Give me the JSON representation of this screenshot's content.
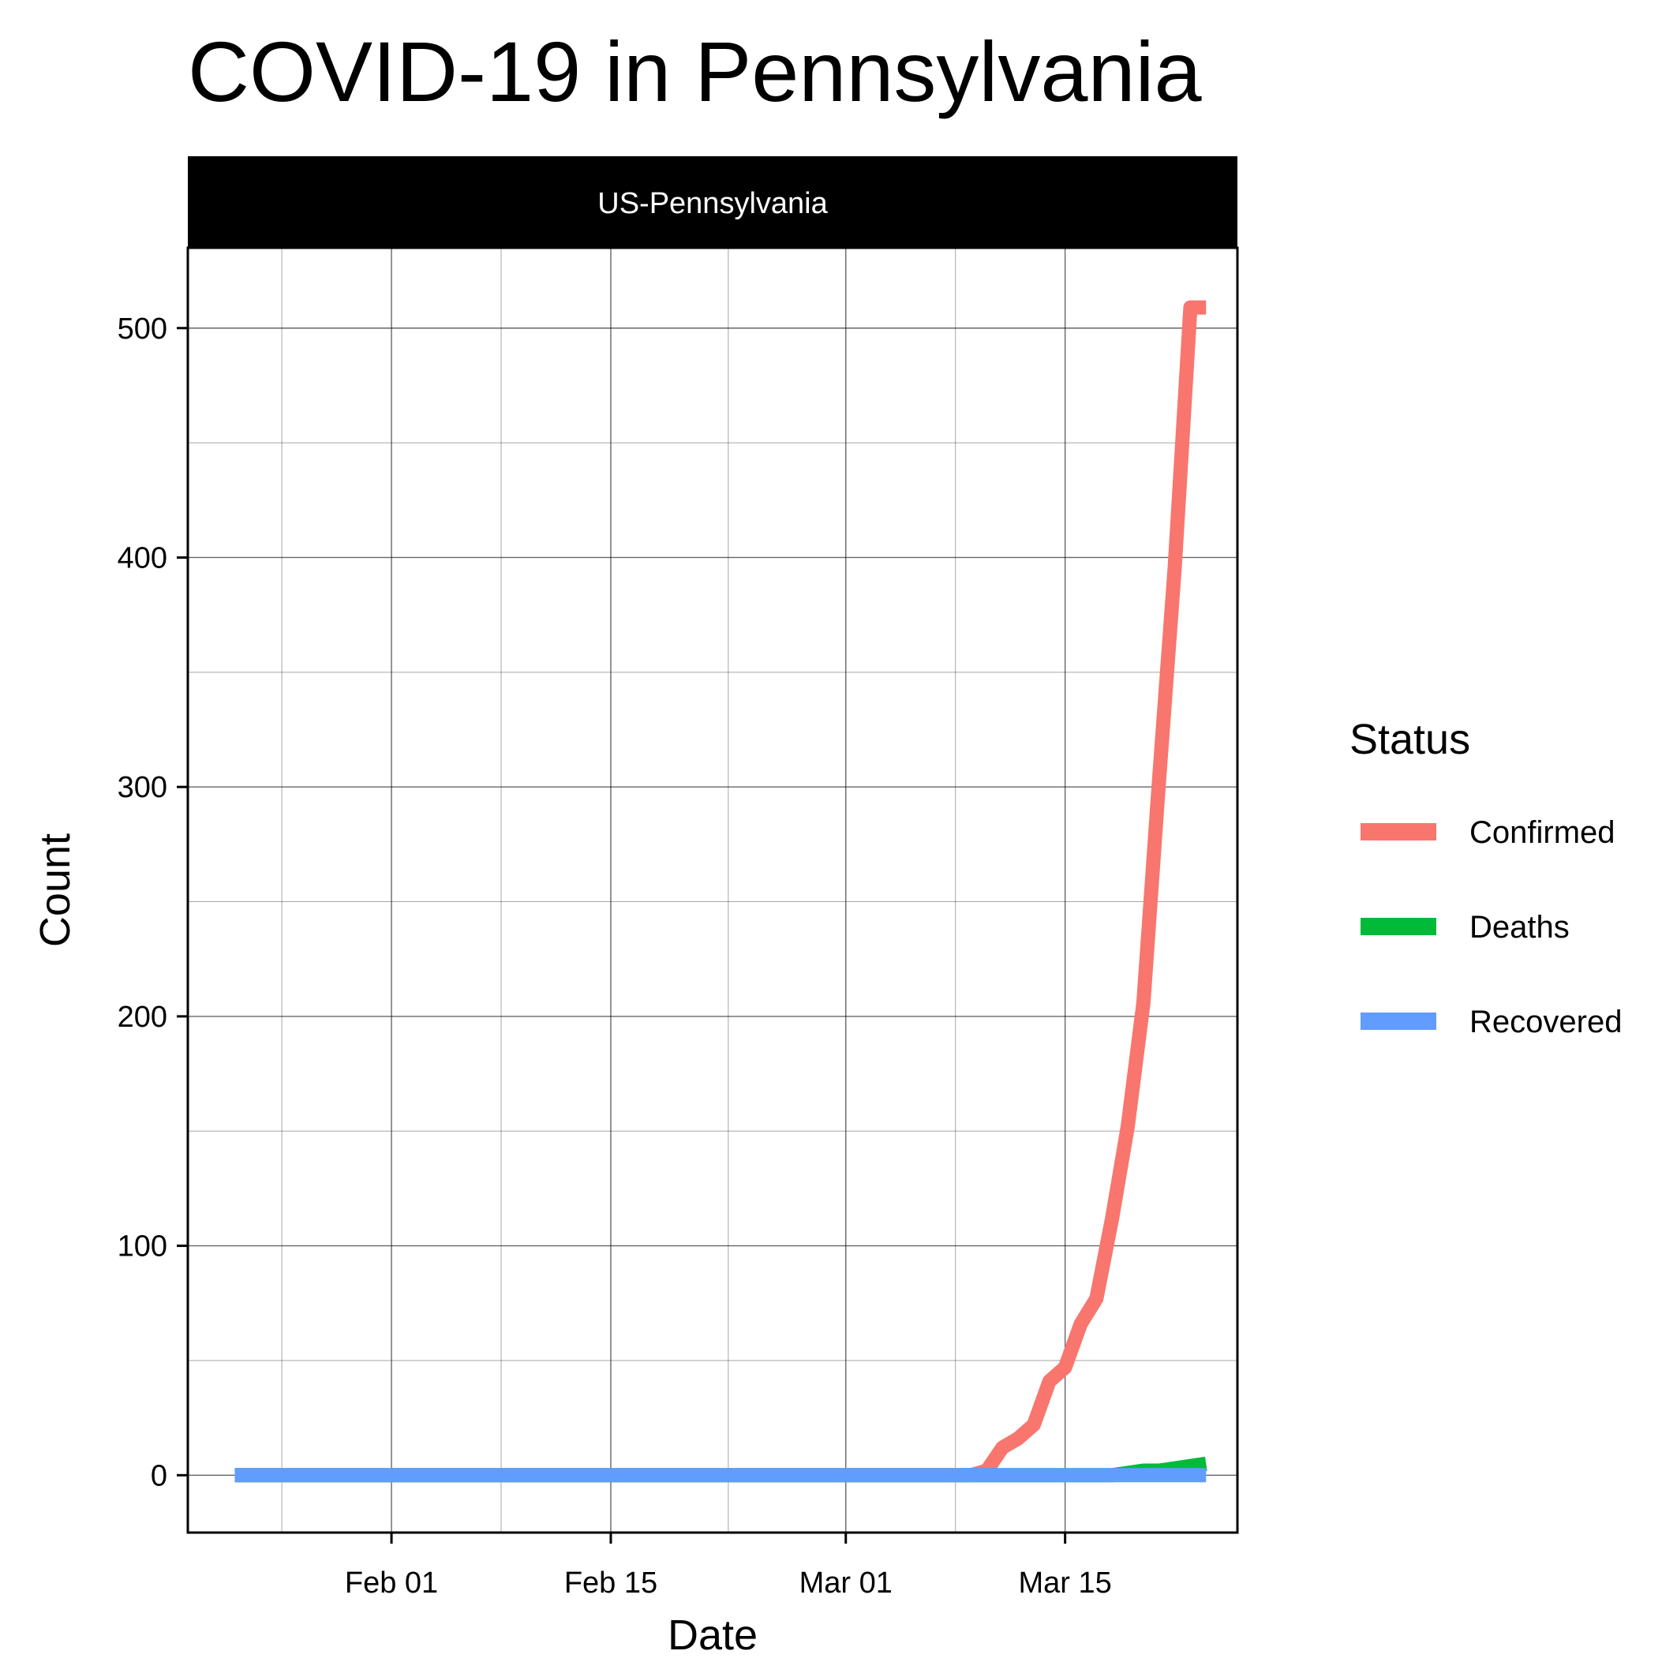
{
  "chart_data": {
    "type": "line",
    "title": "COVID-19 in Pennsylvania",
    "facet_label": "US-Pennsylvania",
    "xlabel": "Date",
    "ylabel": "Count",
    "x_start": "Jan 22",
    "x_range_days": [
      -3,
      64
    ],
    "ylim": [
      -25,
      535
    ],
    "x_ticks": [
      {
        "day": 10,
        "label": "Feb 01"
      },
      {
        "day": 24,
        "label": "Feb 15"
      },
      {
        "day": 39,
        "label": "Mar 01"
      },
      {
        "day": 53,
        "label": "Mar 15"
      }
    ],
    "x_minor_days": [
      3,
      17,
      31.5,
      46
    ],
    "y_ticks": [
      0,
      100,
      200,
      300,
      400,
      500
    ],
    "y_minor": [
      50,
      150,
      250,
      350,
      450
    ],
    "legend_title": "Status",
    "legend_position": "right",
    "series": [
      {
        "name": "Confirmed",
        "color": "#F8766D",
        "points": [
          [
            0,
            0
          ],
          [
            47,
            0
          ],
          [
            48,
            2
          ],
          [
            49,
            12
          ],
          [
            50,
            16
          ],
          [
            51,
            22
          ],
          [
            52,
            41
          ],
          [
            53,
            47
          ],
          [
            54,
            66
          ],
          [
            55,
            77
          ],
          [
            56,
            112
          ],
          [
            57,
            152
          ],
          [
            58,
            206
          ],
          [
            59,
            303
          ],
          [
            60,
            396
          ],
          [
            61,
            509
          ],
          [
            62,
            509
          ]
        ]
      },
      {
        "name": "Deaths",
        "color": "#00BA38",
        "points": [
          [
            0,
            0
          ],
          [
            56,
            0
          ],
          [
            57,
            1
          ],
          [
            58,
            2
          ],
          [
            59,
            2
          ],
          [
            60,
            3
          ],
          [
            61,
            4
          ],
          [
            62,
            5
          ]
        ]
      },
      {
        "name": "Recovered",
        "color": "#619CFF",
        "points": [
          [
            0,
            0
          ],
          [
            62,
            0
          ]
        ]
      }
    ]
  }
}
